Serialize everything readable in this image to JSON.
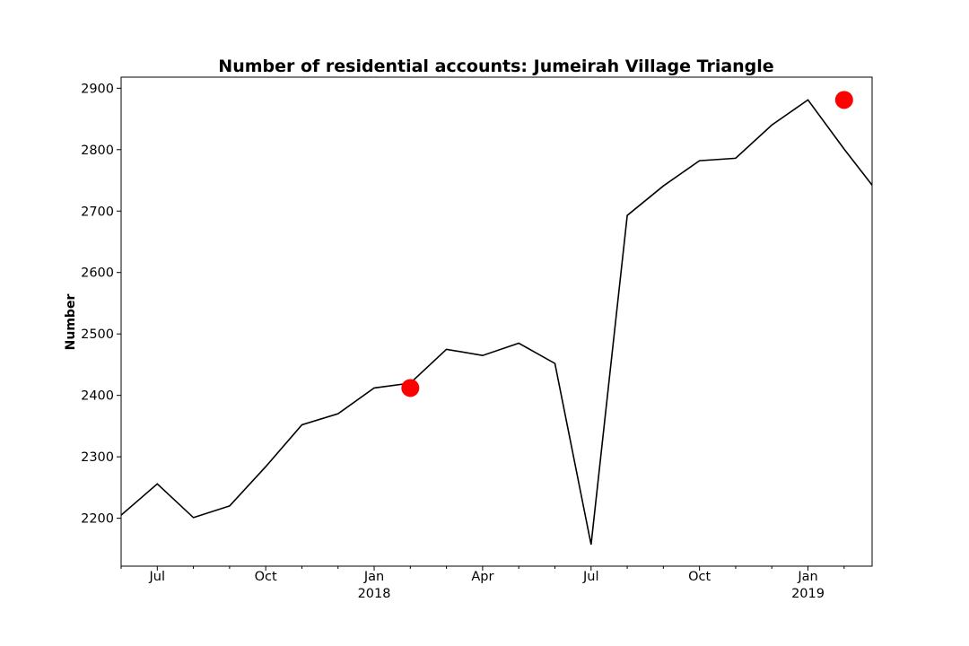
{
  "chart_data": {
    "type": "line",
    "title": "Number of residential accounts: Jumeirah Village Triangle",
    "xlabel": "",
    "ylabel": "Number",
    "x": [
      "2017-05",
      "2017-06",
      "2017-07",
      "2017-08",
      "2017-09",
      "2017-10",
      "2017-11",
      "2017-12",
      "2018-01",
      "2018-02",
      "2018-03",
      "2018-04",
      "2018-05",
      "2018-06",
      "2018-07",
      "2018-08",
      "2018-09",
      "2018-10",
      "2018-11",
      "2018-12",
      "2019-01",
      "2019-02"
    ],
    "values": [
      2205,
      2256,
      2201,
      2220,
      2284,
      2352,
      2370,
      2412,
      2420,
      2475,
      2465,
      2485,
      2452,
      2157,
      2693,
      2741,
      2782,
      2786,
      2840,
      2881,
      2801,
      2725
    ],
    "xlim": [
      "2017-05",
      "2019-01-25"
    ],
    "ylim": [
      2122,
      2918
    ],
    "line_color": "#000000",
    "highlights": [
      {
        "x": "2018-01",
        "value": 2412,
        "color": "#ff0000"
      },
      {
        "x": "2019-01",
        "value": 2881,
        "color": "#ff0000"
      }
    ],
    "x_major_ticks": [
      {
        "x": "2017-06",
        "label": "Jul",
        "sublabel": ""
      },
      {
        "x": "2017-09",
        "label": "Oct",
        "sublabel": ""
      },
      {
        "x": "2017-12",
        "label": "Jan",
        "sublabel": "2018"
      },
      {
        "x": "2018-03",
        "label": "Apr",
        "sublabel": ""
      },
      {
        "x": "2018-06",
        "label": "Jul",
        "sublabel": ""
      },
      {
        "x": "2018-09",
        "label": "Oct",
        "sublabel": ""
      },
      {
        "x": "2018-12",
        "label": "Jan",
        "sublabel": "2019"
      }
    ],
    "x_minor_ticks": [
      "2017-05",
      "2017-07",
      "2017-08",
      "2017-10",
      "2017-11",
      "2018-01",
      "2018-02",
      "2018-04",
      "2018-05",
      "2018-07",
      "2018-08",
      "2018-10",
      "2018-11",
      "2019-01"
    ],
    "y_ticks": [
      2200,
      2300,
      2400,
      2500,
      2600,
      2700,
      2800,
      2900
    ],
    "grid": false,
    "legend": "none"
  }
}
